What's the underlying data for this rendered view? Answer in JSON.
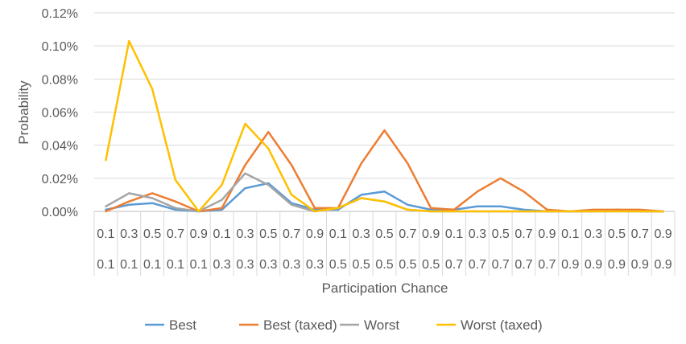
{
  "chart_data": {
    "type": "line",
    "title": "",
    "xlabel": "Participation Chance",
    "ylabel": "Probability",
    "ylim": [
      0,
      0.0012
    ],
    "yticks": [
      "0.00%",
      "0.02%",
      "0.04%",
      "0.06%",
      "0.08%",
      "0.10%",
      "0.12%"
    ],
    "ytick_values": [
      0,
      0.0002,
      0.0004,
      0.0006,
      0.0008,
      0.001,
      0.0012
    ],
    "grid": true,
    "legend_position": "bottom",
    "categories_row1": [
      "0.1",
      "0.3",
      "0.5",
      "0.7",
      "0.9",
      "0.1",
      "0.3",
      "0.5",
      "0.7",
      "0.9",
      "0.1",
      "0.3",
      "0.5",
      "0.7",
      "0.9",
      "0.1",
      "0.3",
      "0.5",
      "0.7",
      "0.9",
      "0.1",
      "0.3",
      "0.5",
      "0.7",
      "0.9"
    ],
    "categories_row2": [
      "0.1",
      "0.1",
      "0.1",
      "0.1",
      "0.1",
      "0.3",
      "0.3",
      "0.3",
      "0.3",
      "0.3",
      "0.5",
      "0.5",
      "0.5",
      "0.5",
      "0.5",
      "0.7",
      "0.7",
      "0.7",
      "0.7",
      "0.7",
      "0.9",
      "0.9",
      "0.9",
      "0.9",
      "0.9"
    ],
    "series": [
      {
        "name": "Best",
        "color": "#5B9BD5",
        "values": [
          1e-05,
          4e-05,
          5e-05,
          1e-05,
          0,
          1e-05,
          0.00014,
          0.00017,
          5e-05,
          1e-05,
          1e-05,
          0.0001,
          0.00012,
          4e-05,
          1e-05,
          1e-05,
          3e-05,
          3e-05,
          1e-05,
          0,
          0,
          0,
          1e-05,
          0,
          0
        ]
      },
      {
        "name": "Best (taxed)",
        "color": "#ED7D31",
        "values": [
          0,
          6e-05,
          0.00011,
          6e-05,
          0,
          2e-05,
          0.00028,
          0.00048,
          0.00028,
          2e-05,
          2e-05,
          0.00029,
          0.00049,
          0.00029,
          2e-05,
          1e-05,
          0.00012,
          0.0002,
          0.00012,
          1e-05,
          0,
          1e-05,
          1e-05,
          1e-05,
          0
        ]
      },
      {
        "name": "Worst",
        "color": "#A5A5A5",
        "values": [
          3e-05,
          0.00011,
          8e-05,
          2e-05,
          0,
          7e-05,
          0.00023,
          0.00016,
          4e-05,
          0,
          2e-05,
          8e-05,
          6e-05,
          1e-05,
          0,
          0,
          0,
          0,
          0,
          0,
          0,
          0,
          0,
          0,
          0
        ]
      },
      {
        "name": "Worst (taxed)",
        "color": "#FFC000",
        "values": [
          0.00031,
          0.00103,
          0.00074,
          0.00019,
          0,
          0.00016,
          0.00053,
          0.00038,
          0.0001,
          0,
          2e-05,
          8e-05,
          6e-05,
          1e-05,
          0,
          0,
          0,
          0,
          0,
          0,
          0,
          0,
          0,
          0,
          0
        ]
      }
    ]
  }
}
